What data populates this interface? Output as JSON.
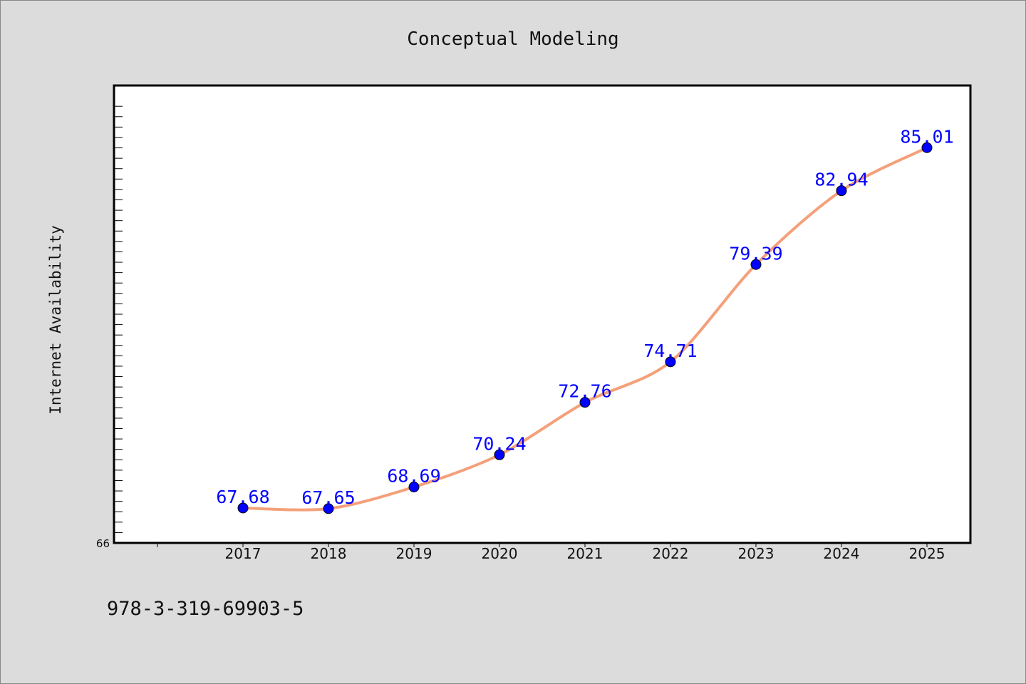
{
  "chart_data": {
    "type": "line",
    "title": "Conceptual Modeling",
    "xlabel": "",
    "ylabel": "Internet Availability",
    "categories": [
      "2017",
      "2018",
      "2019",
      "2020",
      "2021",
      "2022",
      "2023",
      "2024",
      "2025"
    ],
    "series": [
      {
        "values": [
          67.68,
          67.65,
          68.69,
          70.24,
          72.76,
          74.71,
          79.39,
          82.94,
          85.01
        ],
        "line_color": "#f4a07a",
        "marker_color": "#0000ff"
      }
    ],
    "data_labels": [
      "67.68",
      "67.65",
      "68.69",
      "70.24",
      "72.76",
      "74.71",
      "79.39",
      "82.94",
      "85.01"
    ],
    "ylim": [
      66,
      88
    ],
    "y_tick_labels": [
      "66"
    ],
    "grid": false,
    "legend": "none"
  },
  "footer": {
    "text": "978-3-319-69903-5"
  },
  "colors": {
    "background": "#dcdcdc",
    "plot_background": "#ffffff",
    "line": "#f4a07a",
    "marker": "#0000ff",
    "data_label": "#0000ff"
  }
}
